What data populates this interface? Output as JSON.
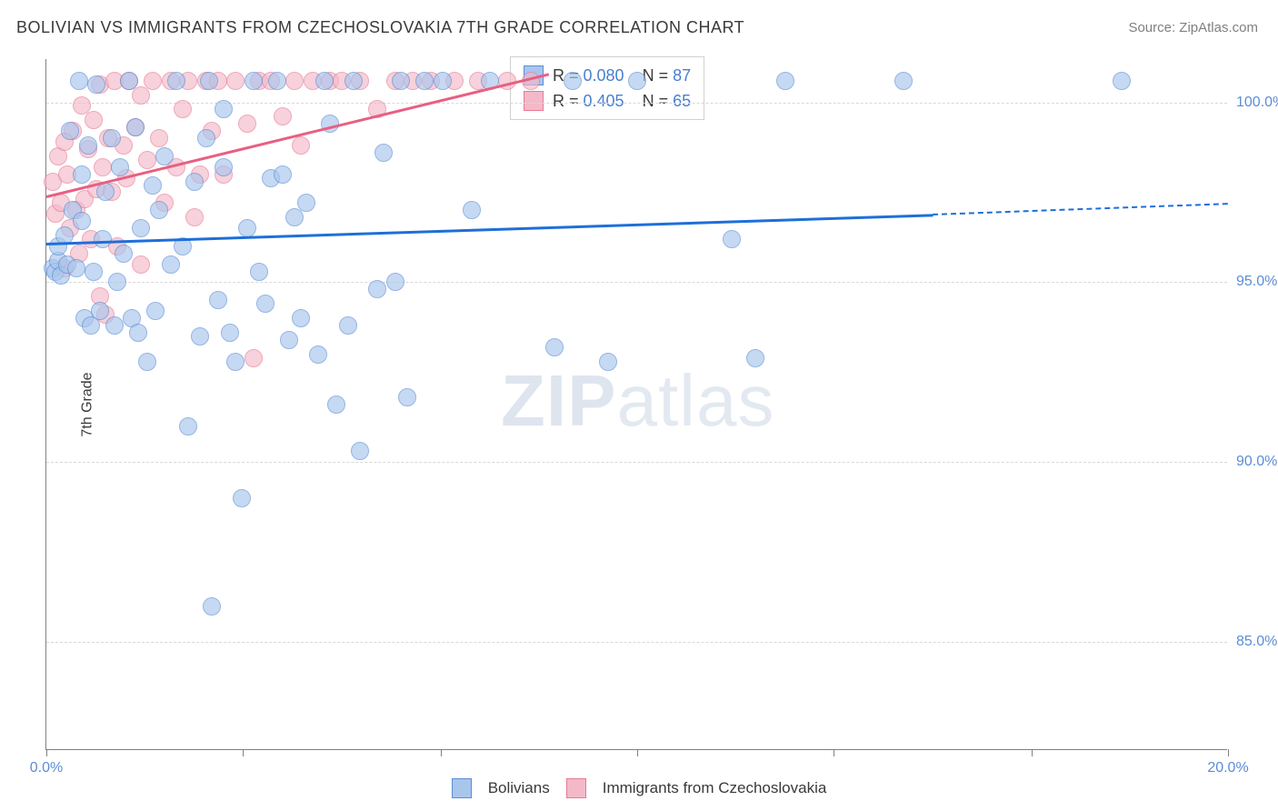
{
  "title": "BOLIVIAN VS IMMIGRANTS FROM CZECHOSLOVAKIA 7TH GRADE CORRELATION CHART",
  "source_label": "Source: ZipAtlas.com",
  "y_axis_label": "7th Grade",
  "watermark_bold": "ZIP",
  "watermark_light": "atlas",
  "axes": {
    "xlim": [
      0,
      20
    ],
    "ylim": [
      82,
      101.2
    ],
    "yticks": [
      {
        "v": 85,
        "l": "85.0%"
      },
      {
        "v": 90,
        "l": "90.0%"
      },
      {
        "v": 95,
        "l": "95.0%"
      },
      {
        "v": 100,
        "l": "100.0%"
      }
    ],
    "xticks_labeled": [
      {
        "v": 0,
        "l": "0.0%"
      },
      {
        "v": 20,
        "l": "20.0%"
      }
    ],
    "xticks_minor": [
      3.33,
      6.67,
      10,
      13.33,
      16.67
    ],
    "grid_color": "#d8d8d8",
    "axis_color": "#808080",
    "tick_label_color": "#5b8dd6",
    "tick_label_fontsize": 16
  },
  "series": {
    "bolivians": {
      "label": "Bolivians",
      "fill": "#a8c6ec",
      "stroke": "#5b8dd6",
      "line": "#1e6fd9",
      "marker_r": 10,
      "line_width": 3,
      "R": "0.080",
      "N": "87",
      "trend": {
        "x1": 0,
        "y1": 96.1,
        "x2": 15,
        "y2": 96.9,
        "dash_from_x": 15,
        "x3": 20,
        "y3": 97.2
      },
      "points": [
        [
          0.1,
          95.4
        ],
        [
          0.15,
          95.3
        ],
        [
          0.2,
          95.6
        ],
        [
          0.2,
          96.0
        ],
        [
          0.25,
          95.2
        ],
        [
          0.3,
          96.3
        ],
        [
          0.35,
          95.5
        ],
        [
          0.4,
          99.2
        ],
        [
          0.45,
          97.0
        ],
        [
          0.5,
          95.4
        ],
        [
          0.55,
          100.6
        ],
        [
          0.6,
          96.7
        ],
        [
          0.65,
          94.0
        ],
        [
          0.7,
          98.8
        ],
        [
          0.75,
          93.8
        ],
        [
          0.8,
          95.3
        ],
        [
          0.85,
          100.5
        ],
        [
          0.9,
          94.2
        ],
        [
          0.95,
          96.2
        ],
        [
          1.0,
          97.5
        ],
        [
          1.1,
          99.0
        ],
        [
          1.15,
          93.8
        ],
        [
          1.2,
          95.0
        ],
        [
          1.25,
          98.2
        ],
        [
          1.3,
          95.8
        ],
        [
          1.4,
          100.6
        ],
        [
          1.45,
          94.0
        ],
        [
          1.5,
          99.3
        ],
        [
          1.55,
          93.6
        ],
        [
          1.6,
          96.5
        ],
        [
          1.7,
          92.8
        ],
        [
          1.8,
          97.7
        ],
        [
          1.85,
          94.2
        ],
        [
          1.9,
          97.0
        ],
        [
          2.0,
          98.5
        ],
        [
          2.1,
          95.5
        ],
        [
          2.2,
          100.6
        ],
        [
          2.3,
          96.0
        ],
        [
          2.4,
          91.0
        ],
        [
          2.5,
          97.8
        ],
        [
          2.6,
          93.5
        ],
        [
          2.7,
          99.0
        ],
        [
          2.75,
          100.6
        ],
        [
          2.8,
          86.0
        ],
        [
          2.9,
          94.5
        ],
        [
          3.0,
          98.2
        ],
        [
          3.1,
          93.6
        ],
        [
          3.2,
          92.8
        ],
        [
          3.3,
          89.0
        ],
        [
          3.4,
          96.5
        ],
        [
          3.5,
          100.6
        ],
        [
          3.6,
          95.3
        ],
        [
          3.7,
          94.4
        ],
        [
          3.8,
          97.9
        ],
        [
          3.9,
          100.6
        ],
        [
          4.0,
          98.0
        ],
        [
          4.1,
          93.4
        ],
        [
          4.2,
          96.8
        ],
        [
          4.3,
          94.0
        ],
        [
          4.4,
          97.2
        ],
        [
          4.6,
          93.0
        ],
        [
          4.7,
          100.6
        ],
        [
          4.8,
          99.4
        ],
        [
          4.9,
          91.6
        ],
        [
          5.1,
          93.8
        ],
        [
          5.2,
          100.6
        ],
        [
          5.3,
          90.3
        ],
        [
          5.6,
          94.8
        ],
        [
          5.7,
          98.6
        ],
        [
          5.9,
          95.0
        ],
        [
          6.0,
          100.6
        ],
        [
          6.1,
          91.8
        ],
        [
          6.4,
          100.6
        ],
        [
          6.7,
          100.6
        ],
        [
          7.2,
          97.0
        ],
        [
          7.5,
          100.6
        ],
        [
          8.6,
          93.2
        ],
        [
          8.9,
          100.6
        ],
        [
          9.5,
          92.8
        ],
        [
          10.0,
          100.6
        ],
        [
          11.6,
          96.2
        ],
        [
          12.0,
          92.9
        ],
        [
          12.5,
          100.6
        ],
        [
          14.5,
          100.6
        ],
        [
          18.2,
          100.6
        ],
        [
          3.0,
          99.8
        ],
        [
          0.6,
          98.0
        ]
      ]
    },
    "czechoslovakia": {
      "label": "Immigrants from Czechoslovakia",
      "fill": "#f4b9c8",
      "stroke": "#e77a95",
      "line": "#e85f82",
      "marker_r": 10,
      "line_width": 3,
      "R": "0.405",
      "N": "65",
      "trend": {
        "x1": 0,
        "y1": 97.4,
        "x2": 8.5,
        "y2": 100.8
      },
      "points": [
        [
          0.1,
          97.8
        ],
        [
          0.15,
          96.9
        ],
        [
          0.2,
          98.5
        ],
        [
          0.25,
          97.2
        ],
        [
          0.3,
          95.4
        ],
        [
          0.35,
          98.0
        ],
        [
          0.4,
          96.5
        ],
        [
          0.45,
          99.2
        ],
        [
          0.5,
          97.0
        ],
        [
          0.55,
          95.8
        ],
        [
          0.6,
          99.9
        ],
        [
          0.65,
          97.3
        ],
        [
          0.7,
          98.7
        ],
        [
          0.75,
          96.2
        ],
        [
          0.8,
          99.5
        ],
        [
          0.85,
          97.6
        ],
        [
          0.9,
          100.5
        ],
        [
          0.95,
          98.2
        ],
        [
          1.0,
          94.1
        ],
        [
          1.05,
          99.0
        ],
        [
          1.1,
          97.5
        ],
        [
          1.15,
          100.6
        ],
        [
          1.2,
          96.0
        ],
        [
          1.3,
          98.8
        ],
        [
          1.35,
          97.9
        ],
        [
          1.4,
          100.6
        ],
        [
          1.5,
          99.3
        ],
        [
          1.6,
          95.5
        ],
        [
          1.7,
          98.4
        ],
        [
          1.8,
          100.6
        ],
        [
          1.9,
          99.0
        ],
        [
          2.0,
          97.2
        ],
        [
          2.1,
          100.6
        ],
        [
          2.2,
          98.2
        ],
        [
          2.3,
          99.8
        ],
        [
          2.4,
          100.6
        ],
        [
          2.5,
          96.8
        ],
        [
          2.7,
          100.6
        ],
        [
          2.8,
          99.2
        ],
        [
          2.9,
          100.6
        ],
        [
          3.0,
          98.0
        ],
        [
          3.2,
          100.6
        ],
        [
          3.4,
          99.4
        ],
        [
          3.5,
          92.9
        ],
        [
          3.6,
          100.6
        ],
        [
          3.8,
          100.6
        ],
        [
          4.0,
          99.6
        ],
        [
          4.2,
          100.6
        ],
        [
          4.5,
          100.6
        ],
        [
          4.8,
          100.6
        ],
        [
          5.0,
          100.6
        ],
        [
          5.3,
          100.6
        ],
        [
          5.6,
          99.8
        ],
        [
          5.9,
          100.6
        ],
        [
          6.2,
          100.6
        ],
        [
          6.5,
          100.6
        ],
        [
          6.9,
          100.6
        ],
        [
          7.3,
          100.6
        ],
        [
          7.8,
          100.6
        ],
        [
          8.2,
          100.6
        ],
        [
          0.3,
          98.9
        ],
        [
          0.9,
          94.6
        ],
        [
          1.6,
          100.2
        ],
        [
          2.6,
          98.0
        ],
        [
          4.3,
          98.8
        ]
      ]
    }
  },
  "legend_top": {
    "r_label": "R =",
    "n_label": "N =",
    "border": "#d0d0d0",
    "bg": "#ffffff",
    "fontsize": 18,
    "value_color": "#4a7fd0"
  },
  "legend_bottom": {
    "fontsize": 17
  }
}
